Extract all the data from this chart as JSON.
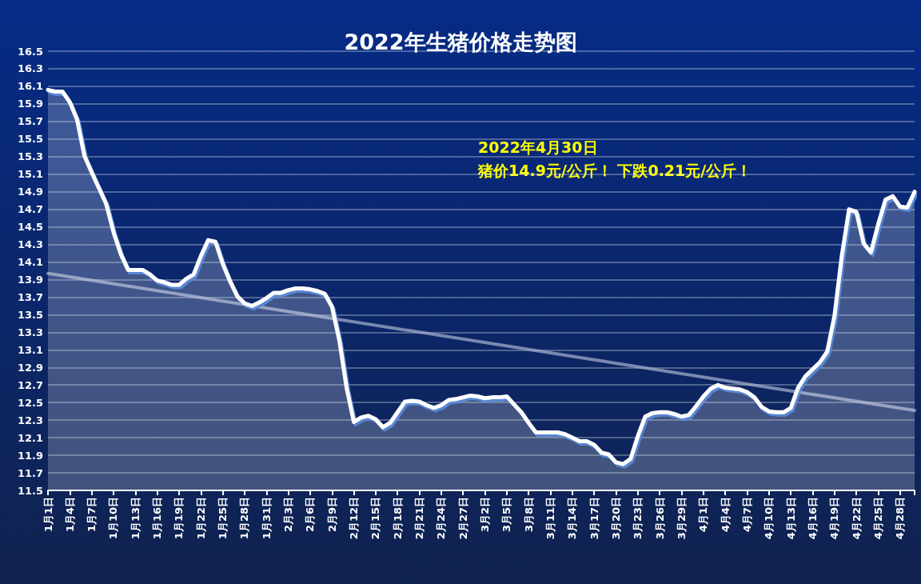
{
  "chart_data": {
    "type": "area",
    "title": "2022年生猪价格走势图",
    "categories": [
      "1月1日",
      null,
      null,
      "1月4日",
      null,
      null,
      "1月7日",
      null,
      null,
      "1月10日",
      null,
      null,
      "1月13日",
      null,
      null,
      "1月16日",
      null,
      null,
      "1月19日",
      null,
      null,
      "1月22日",
      null,
      null,
      "1月25日",
      null,
      null,
      "1月28日",
      null,
      null,
      "1月31日",
      null,
      null,
      "2月3日",
      null,
      null,
      "2月6日",
      null,
      null,
      "2月9日",
      null,
      null,
      "2月12日",
      null,
      null,
      "2月15日",
      null,
      null,
      "2月18日",
      null,
      null,
      "2月21日",
      null,
      null,
      "2月24日",
      null,
      null,
      "2月27日",
      null,
      null,
      "3月2日",
      null,
      null,
      "3月5日",
      null,
      null,
      "3月8日",
      null,
      null,
      "3月11日",
      null,
      null,
      "3月14日",
      null,
      null,
      "3月17日",
      null,
      null,
      "3月20日",
      null,
      null,
      "3月23日",
      null,
      null,
      "3月26日",
      null,
      null,
      "3月29日",
      null,
      null,
      "4月1日",
      null,
      null,
      "4月4日",
      null,
      null,
      "4月7日",
      null,
      null,
      "4月10日",
      null,
      null,
      "4月13日",
      null,
      null,
      "4月16日",
      null,
      null,
      "4月19日",
      null,
      null,
      "4月22日",
      null,
      null,
      "4月25日",
      null,
      null,
      "4月28日",
      null,
      null
    ],
    "series": [
      {
        "color": "#ffffff",
        "values": [
          16.06,
          16.04,
          16.04,
          15.92,
          15.72,
          15.31,
          15.12,
          14.94,
          14.76,
          14.44,
          14.19,
          14.01,
          14.01,
          14.01,
          13.96,
          13.89,
          13.87,
          13.84,
          13.84,
          13.91,
          13.96,
          14.17,
          14.35,
          14.33,
          14.08,
          13.88,
          13.71,
          13.63,
          13.6,
          13.64,
          13.69,
          13.75,
          13.75,
          13.78,
          13.8,
          13.8,
          13.79,
          13.77,
          13.74,
          13.59,
          13.21,
          12.67,
          12.28,
          12.33,
          12.35,
          12.31,
          12.22,
          12.27,
          12.39,
          12.51,
          12.52,
          12.51,
          12.47,
          12.44,
          12.47,
          12.53,
          12.54,
          12.56,
          12.58,
          12.57,
          12.55,
          12.56,
          12.56,
          12.57,
          12.48,
          12.39,
          12.27,
          12.16,
          12.16,
          12.16,
          12.16,
          12.14,
          12.1,
          12.06,
          12.06,
          12.02,
          11.93,
          11.91,
          11.82,
          11.8,
          11.86,
          12.12,
          12.34,
          12.38,
          12.39,
          12.39,
          12.37,
          12.34,
          12.36,
          12.46,
          12.57,
          12.66,
          12.7,
          12.67,
          12.66,
          12.65,
          12.62,
          12.56,
          12.45,
          12.4,
          12.39,
          12.39,
          12.44,
          12.67,
          12.8,
          12.88,
          12.96,
          13.08,
          13.49,
          14.17,
          14.7,
          14.67,
          14.31,
          14.21,
          14.53,
          14.81,
          14.85,
          14.73,
          14.72,
          14.9
        ]
      },
      {
        "type": "line",
        "color": "#aab4d2",
        "values": [
          13.97,
          null,
          null,
          null,
          null,
          null,
          null,
          null,
          null,
          null,
          null,
          null,
          null,
          null,
          null,
          null,
          null,
          null,
          null,
          null,
          null,
          null,
          null,
          null,
          null,
          null,
          null,
          null,
          null,
          null,
          null,
          null,
          null,
          null,
          null,
          null,
          null,
          null,
          null,
          null,
          null,
          null,
          null,
          null,
          null,
          null,
          null,
          null,
          null,
          null,
          null,
          null,
          null,
          null,
          null,
          null,
          null,
          null,
          null,
          null,
          null,
          null,
          null,
          null,
          null,
          null,
          null,
          null,
          null,
          null,
          null,
          null,
          null,
          null,
          null,
          null,
          null,
          null,
          null,
          null,
          null,
          null,
          null,
          null,
          null,
          null,
          null,
          null,
          null,
          null,
          null,
          null,
          null,
          null,
          null,
          null,
          null,
          null,
          null,
          null,
          null,
          null,
          null,
          null,
          null,
          null,
          null,
          null,
          null,
          null,
          null,
          null,
          null,
          null,
          null,
          null,
          null,
          null,
          null,
          12.41
        ]
      }
    ],
    "ylim": [
      11.5,
      16.5
    ],
    "yticks": [
      11.5,
      11.7,
      11.9,
      12.1,
      12.3,
      12.5,
      12.7,
      12.9,
      13.1,
      13.3,
      13.5,
      13.7,
      13.9,
      14.1,
      14.3,
      14.5,
      14.7,
      14.9,
      15.1,
      15.3,
      15.5,
      15.7,
      15.9,
      16.1,
      16.3,
      16.5
    ],
    "grid": "y",
    "marker": "none",
    "line_style": "solid",
    "annotations": [
      "2022年4月30日",
      "猪价14.9元/公斤！ 下跌0.21元/公斤！"
    ]
  }
}
